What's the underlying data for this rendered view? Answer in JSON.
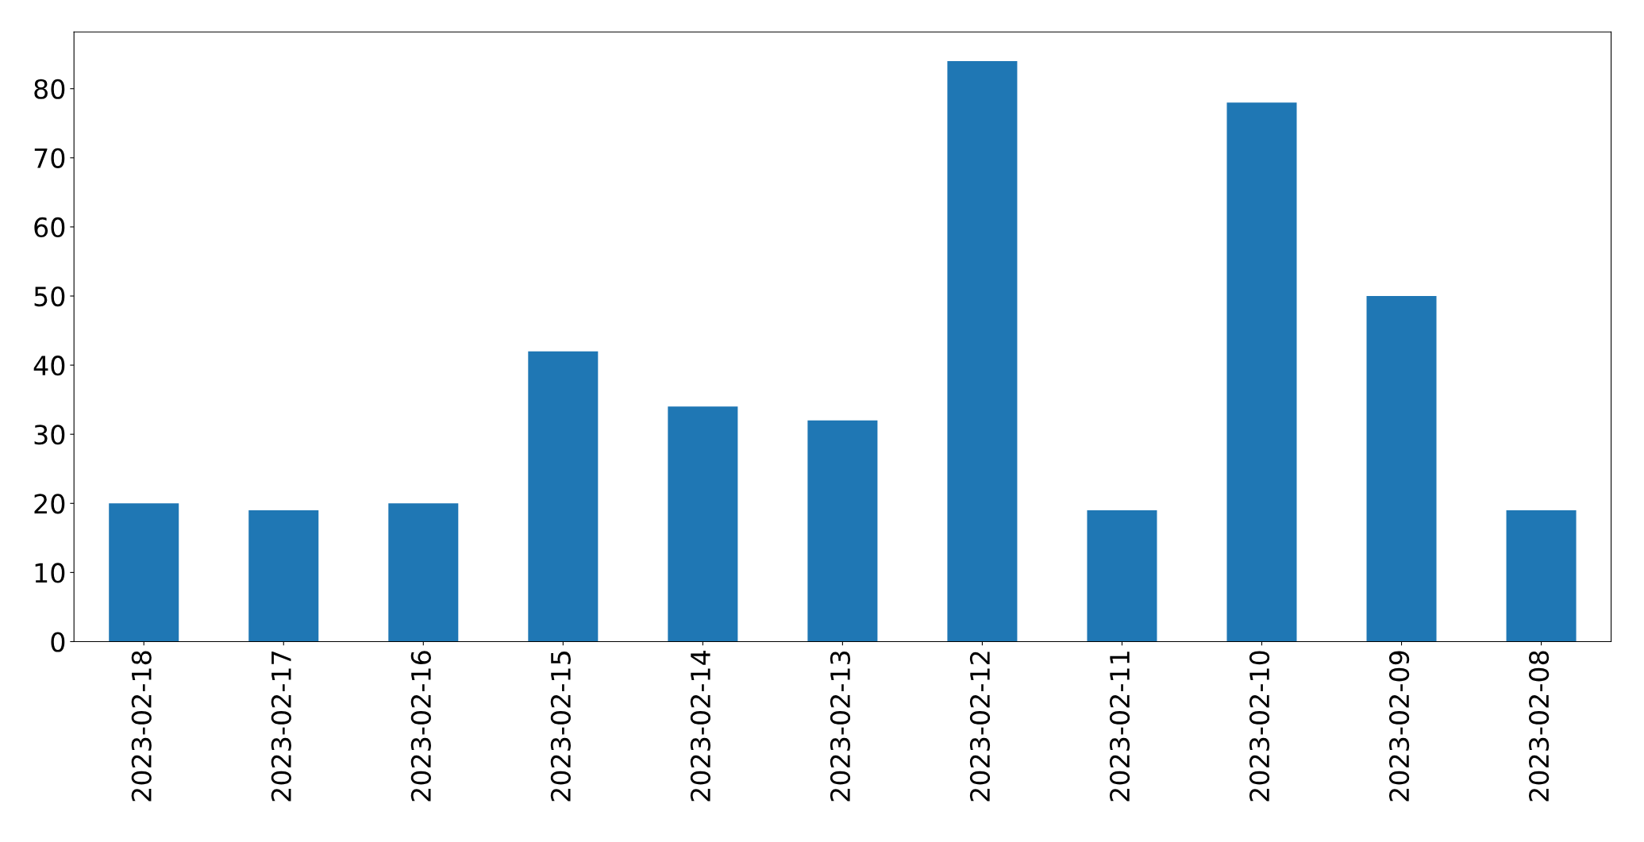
{
  "chart_data": {
    "type": "bar",
    "categories": [
      "2023-02-18",
      "2023-02-17",
      "2023-02-16",
      "2023-02-15",
      "2023-02-14",
      "2023-02-13",
      "2023-02-12",
      "2023-02-11",
      "2023-02-10",
      "2023-02-09",
      "2023-02-08"
    ],
    "values": [
      20,
      19,
      20,
      42,
      34,
      32,
      84,
      19,
      78,
      50,
      19
    ],
    "color": "#1f77b4",
    "ylim": [
      0,
      88.2
    ],
    "yticks": [
      0,
      10,
      20,
      30,
      40,
      50,
      60,
      70,
      80
    ],
    "grid": false,
    "legend": false
  }
}
